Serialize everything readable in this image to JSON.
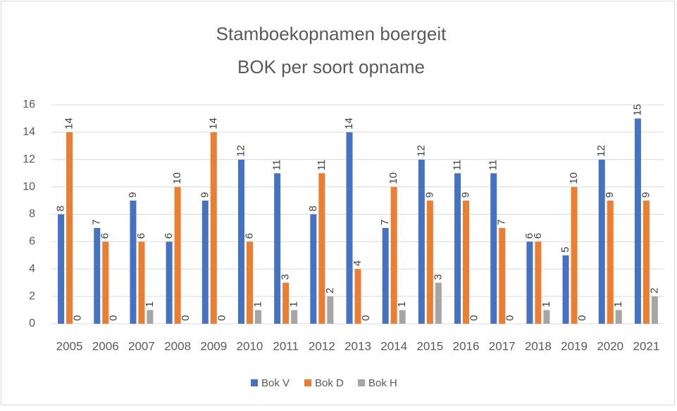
{
  "chart_data": {
    "type": "bar",
    "title": "Stamboekopnamen boergeit",
    "subtitle": "BOK per soort opname",
    "categories": [
      "2005",
      "2006",
      "2007",
      "2008",
      "2009",
      "2010",
      "2011",
      "2012",
      "2013",
      "2014",
      "2015",
      "2016",
      "2017",
      "2018",
      "2019",
      "2020",
      "2021"
    ],
    "series": [
      {
        "name": "Bok V",
        "color": "#4472c4",
        "values": [
          8,
          7,
          9,
          6,
          9,
          12,
          11,
          8,
          14,
          7,
          12,
          11,
          11,
          6,
          5,
          12,
          15
        ]
      },
      {
        "name": "Bok D",
        "color": "#ed7d31",
        "values": [
          14,
          6,
          6,
          10,
          14,
          6,
          3,
          11,
          4,
          10,
          9,
          9,
          7,
          6,
          10,
          9,
          9
        ]
      },
      {
        "name": "Bok H",
        "color": "#a5a5a5",
        "values": [
          0,
          0,
          1,
          0,
          0,
          1,
          1,
          2,
          0,
          1,
          3,
          0,
          0,
          1,
          0,
          1,
          2
        ]
      }
    ],
    "ylim": [
      0,
      16
    ],
    "yticks": [
      0,
      2,
      4,
      6,
      8,
      10,
      12,
      14,
      16
    ],
    "grid": true,
    "legend": "bottom"
  }
}
